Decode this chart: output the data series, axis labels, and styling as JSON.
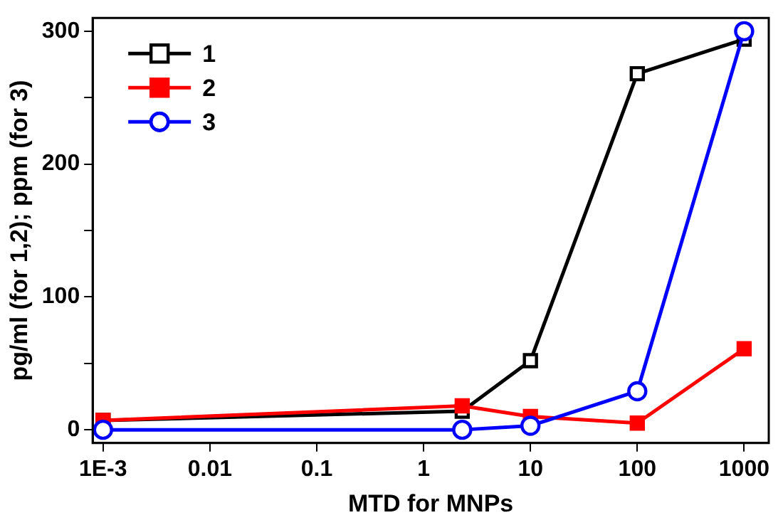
{
  "chart_data": {
    "type": "line",
    "xlabel": "MTD for MNPs",
    "ylabel": "pg/ml (for 1,2); ppm (for 3)",
    "log": "x",
    "xlim": [
      0.0008,
      1700
    ],
    "ylim": [
      -10,
      310
    ],
    "xticks": [
      {
        "value": 0.001,
        "label": "1E-3"
      },
      0.01,
      0.1,
      1,
      10,
      100,
      1000
    ],
    "yticks": [
      0,
      {
        "value": 50,
        "label": null
      },
      100,
      {
        "value": 150,
        "label": null
      },
      200,
      {
        "value": 250,
        "label": null
      },
      300
    ],
    "grid": false,
    "legend": "top left",
    "line_style": "solid",
    "series": [
      {
        "name": "1",
        "color": "#000000",
        "marker": "square",
        "x": [
          0.001,
          2.3,
          10,
          100,
          1000
        ],
        "values": [
          7,
          14,
          52,
          268,
          294
        ]
      },
      {
        "name": "2",
        "color": "#ff0000",
        "marker": "square",
        "x": [
          0.001,
          2.3,
          10,
          100,
          1000
        ],
        "values": [
          7,
          18,
          10,
          5,
          61
        ]
      },
      {
        "name": "3",
        "color": "#0000ff",
        "marker": "circle",
        "x": [
          0.001,
          2.3,
          10,
          100,
          1000
        ],
        "values": [
          0,
          0,
          3,
          29,
          300
        ]
      }
    ]
  }
}
